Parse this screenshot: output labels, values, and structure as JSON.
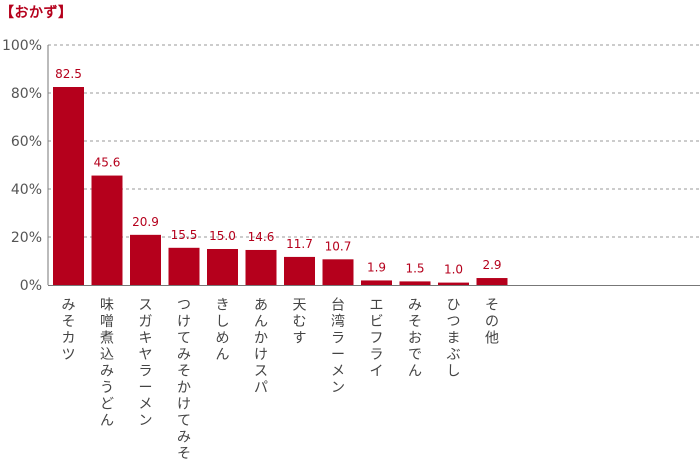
{
  "chart_data": {
    "type": "bar",
    "title": "【おかず】",
    "categories": [
      "みそカツ",
      "味噌煮込みうどん",
      "スガキヤラーメン",
      "つけてみそかけてみそ",
      "きしめん",
      "あんかけスパ",
      "天むす",
      "台湾ラーメン",
      "エビフライ",
      "みそおでん",
      "ひつまぶし",
      "その他"
    ],
    "values": [
      82.5,
      45.6,
      20.9,
      15.5,
      15.0,
      14.6,
      11.7,
      10.7,
      1.9,
      1.5,
      1.0,
      2.9
    ],
    "value_labels": [
      "82.5",
      "45.6",
      "20.9",
      "15.5",
      "15.0",
      "14.6",
      "11.7",
      "10.7",
      "1.9",
      "1.5",
      "1.0",
      "2.9"
    ],
    "yticks": [
      "0%",
      "20%",
      "40%",
      "60%",
      "80%",
      "100%"
    ],
    "ylim": [
      0,
      100
    ],
    "grid": true,
    "bar_color": "#b5001c",
    "label_color": "#b5001c"
  }
}
